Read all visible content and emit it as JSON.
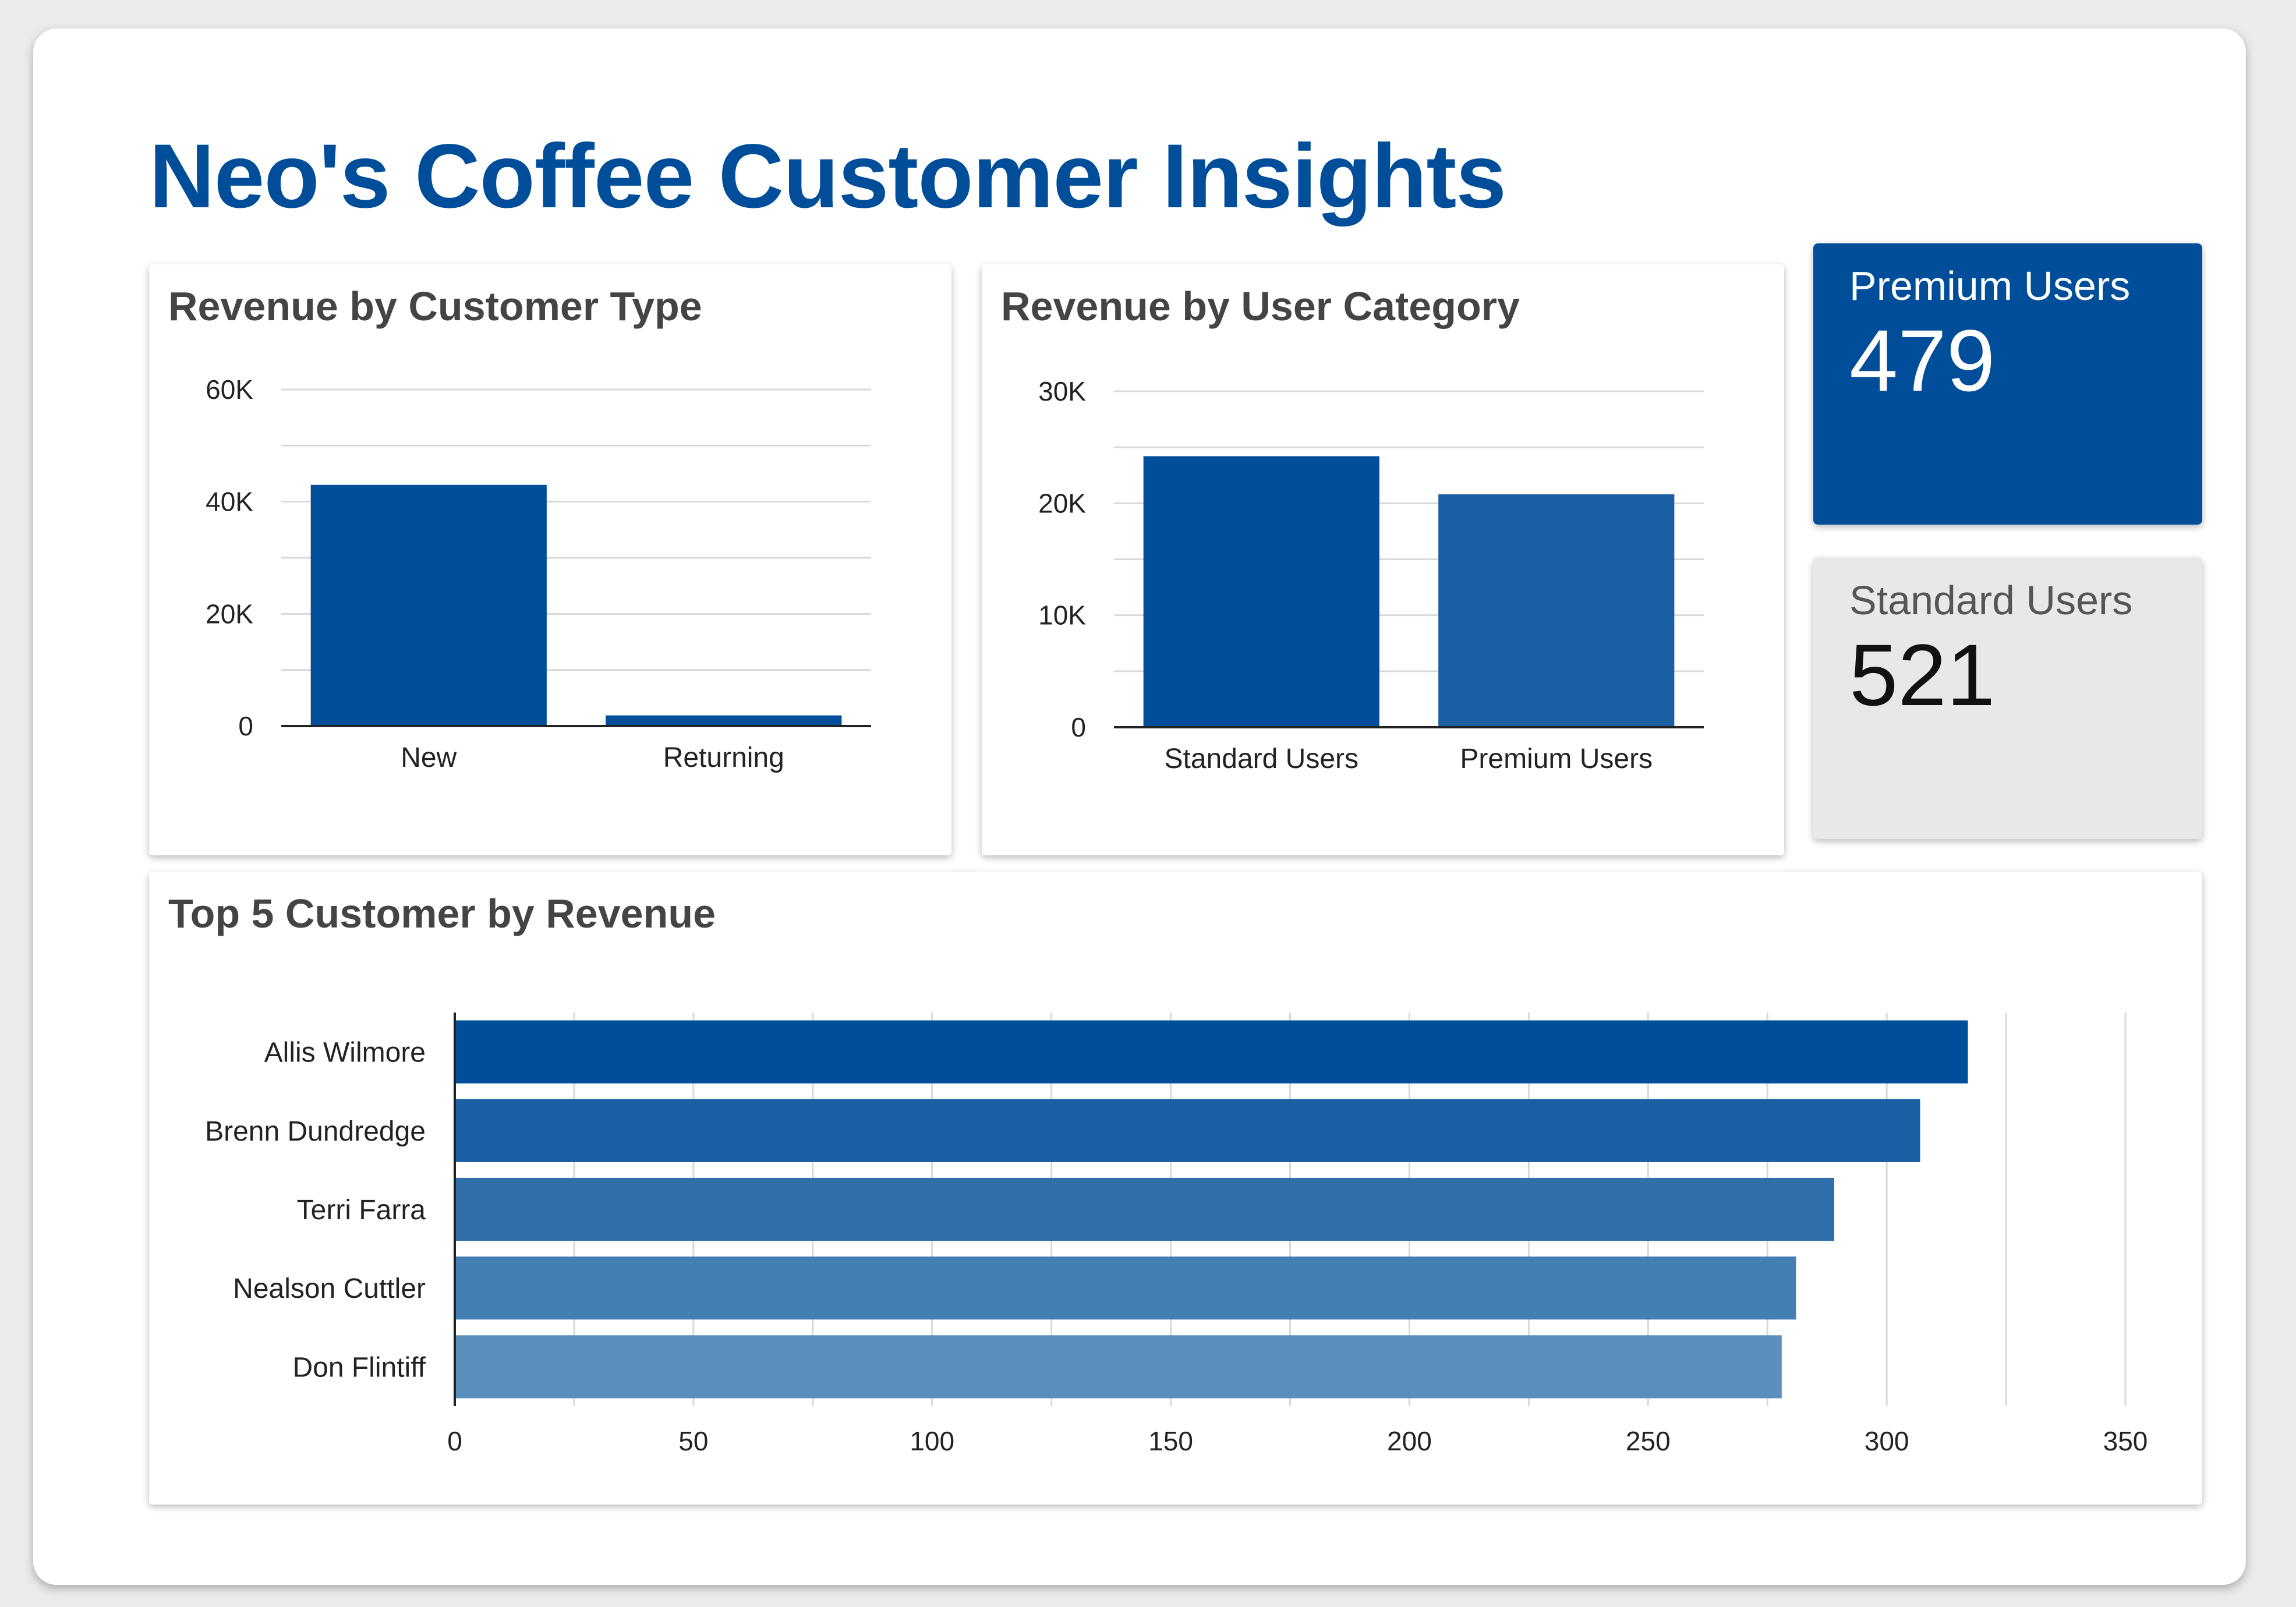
{
  "title": "Neo's Coffee Customer Insights",
  "kpis": {
    "premium": {
      "label": "Premium Users",
      "value": "479"
    },
    "standard": {
      "label": "Standard Users",
      "value": "521"
    }
  },
  "colors": {
    "primary": "#004d9a",
    "secondary": "#1a5fa3",
    "bar_shades": [
      "#004d9a",
      "#1a5fa3",
      "#2f6faa",
      "#437fb5",
      "#5a8fbd"
    ],
    "standard_card": "#e8e8e8"
  },
  "chart_data": [
    {
      "type": "bar",
      "orientation": "vertical",
      "title": "Revenue by Customer Type",
      "categories": [
        "New",
        "Returning"
      ],
      "values": [
        43000,
        1900
      ],
      "ylim": [
        0,
        60000
      ],
      "yticks": [
        0,
        20000,
        40000,
        60000
      ],
      "ytick_labels": [
        "0",
        "20K",
        "40K",
        "60K"
      ],
      "xlabel": "",
      "ylabel": "",
      "grid": true
    },
    {
      "type": "bar",
      "orientation": "vertical",
      "title": "Revenue by User Category",
      "categories": [
        "Standard Users",
        "Premium Users"
      ],
      "values": [
        24200,
        20800
      ],
      "ylim": [
        0,
        30000
      ],
      "yticks": [
        0,
        10000,
        20000,
        30000
      ],
      "ytick_labels": [
        "0",
        "10K",
        "20K",
        "30K"
      ],
      "xlabel": "",
      "ylabel": "",
      "grid": true
    },
    {
      "type": "bar",
      "orientation": "horizontal",
      "title": "Top 5 Customer by Revenue",
      "categories": [
        "Allis Wilmore",
        "Brenn Dundredge",
        "Terri Farra",
        "Nealson Cuttler",
        "Don Flintiff"
      ],
      "values": [
        317,
        307,
        289,
        281,
        278
      ],
      "xlim": [
        0,
        350
      ],
      "xticks": [
        0,
        50,
        100,
        150,
        200,
        250,
        300,
        350
      ],
      "xtick_labels": [
        "0",
        "50",
        "100",
        "150",
        "200",
        "250",
        "300",
        "350"
      ],
      "xlabel": "",
      "ylabel": "",
      "grid": true
    }
  ]
}
